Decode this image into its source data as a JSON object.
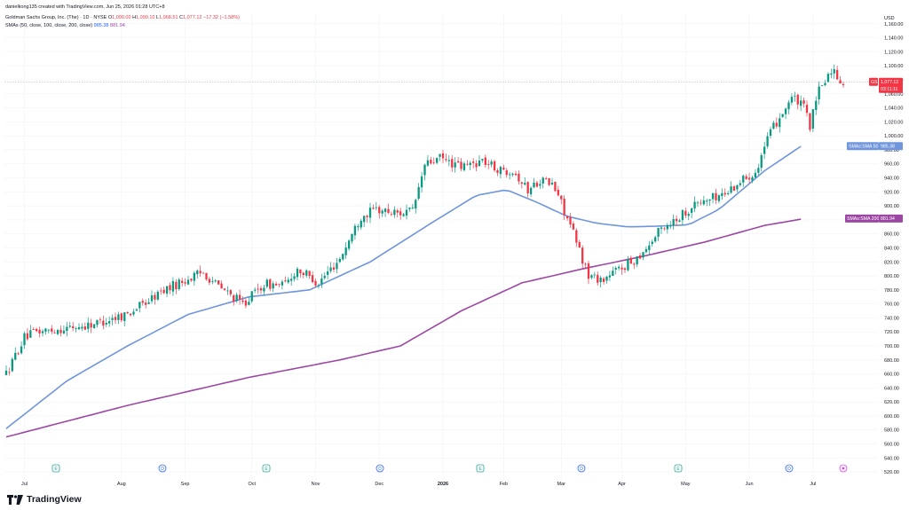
{
  "header": {
    "credit": "danielkong135 created with TradingView.com, Jun 25, 2026 01:28 UTC+8",
    "symbol": "Goldman Sachs Group, Inc. (The) · 1D · NYSE",
    "ohlc": [
      {
        "k": "O",
        "v": "1,090.00"
      },
      {
        "k": "H",
        "v": "1,090.10"
      },
      {
        "k": "L",
        "v": "1,068.51"
      },
      {
        "k": "C",
        "v": "1,077.12"
      }
    ],
    "change": "−17.32 (−1.58%)",
    "sma_label": "SMAs (50, close, 100, close, 200, close)",
    "sma_values": [
      "985.38",
      "881.94"
    ]
  },
  "brand": {
    "logo_icon": "tradingview-logo-icon",
    "name": "TradingView"
  },
  "colors": {
    "up": "#089981",
    "down": "#f23645",
    "sma50": "#6f95dc",
    "sma200": "#9c47a3",
    "grid": "#f0f3fa",
    "event": "#26a69a",
    "dividend": "#2962ff"
  },
  "chart_data": {
    "type": "candlestick",
    "currency": "USD",
    "price_axis": {
      "range": [
        510,
        1175
      ],
      "ticks": [
        "520.00",
        "540.00",
        "560.00",
        "580.00",
        "600.00",
        "620.00",
        "640.00",
        "660.00",
        "680.00",
        "700.00",
        "720.00",
        "740.00",
        "760.00",
        "780.00",
        "800.00",
        "820.00",
        "840.00",
        "860.00",
        "880.00",
        "900.00",
        "920.00",
        "940.00",
        "960.00",
        "980.00",
        "1,000.00",
        "1,020.00",
        "1,040.00",
        "1,060.00",
        "1,080.00",
        "1,100.00",
        "1,120.00",
        "1,140.00",
        "1,160.00"
      ]
    },
    "time_axis": {
      "labels": [
        "Jul",
        "Aug",
        "Sep",
        "Oct",
        "Nov",
        "Dec",
        "2026",
        "Feb",
        "Mar",
        "Apr",
        "May",
        "Jun",
        "Jul"
      ]
    },
    "last_price": {
      "symbol": "GS",
      "value": "1,077.12",
      "countdown": "03:11:11"
    },
    "sma_labels": [
      {
        "name": "SMAs:SMA 50",
        "value": "985.38"
      },
      {
        "name": "SMAs:SMA 200",
        "value": "881.94"
      }
    ],
    "events": [
      "E",
      "D",
      "E",
      "D",
      "E",
      "D",
      "E",
      "D"
    ],
    "keypoints": [
      [
        0,
        660
      ],
      [
        6,
        712
      ],
      [
        10,
        720
      ],
      [
        25,
        728
      ],
      [
        30,
        733
      ],
      [
        40,
        746
      ],
      [
        47,
        765
      ],
      [
        52,
        780
      ],
      [
        58,
        792
      ],
      [
        65,
        805
      ],
      [
        70,
        785
      ],
      [
        78,
        760
      ],
      [
        85,
        788
      ],
      [
        92,
        787
      ],
      [
        96,
        810
      ],
      [
        103,
        790
      ],
      [
        110,
        825
      ],
      [
        117,
        885
      ],
      [
        122,
        895
      ],
      [
        128,
        890
      ],
      [
        134,
        892
      ],
      [
        138,
        958
      ],
      [
        143,
        968
      ],
      [
        150,
        955
      ],
      [
        157,
        965
      ],
      [
        163,
        950
      ],
      [
        167,
        952
      ],
      [
        172,
        922
      ],
      [
        176,
        938
      ],
      [
        180,
        930
      ],
      [
        182,
        915
      ],
      [
        187,
        860
      ],
      [
        192,
        800
      ],
      [
        197,
        795
      ],
      [
        202,
        810
      ],
      [
        207,
        822
      ],
      [
        212,
        845
      ],
      [
        216,
        868
      ],
      [
        221,
        882
      ],
      [
        227,
        902
      ],
      [
        232,
        910
      ],
      [
        237,
        918
      ],
      [
        242,
        935
      ],
      [
        247,
        950
      ],
      [
        251,
        995
      ],
      [
        254,
        1020
      ],
      [
        259,
        1055
      ],
      [
        263,
        1040
      ],
      [
        265,
        1015
      ],
      [
        268,
        1065
      ],
      [
        272,
        1095
      ],
      [
        276,
        1077
      ]
    ],
    "sma50_points": [
      [
        0,
        582
      ],
      [
        20,
        650
      ],
      [
        40,
        700
      ],
      [
        60,
        745
      ],
      [
        80,
        770
      ],
      [
        100,
        780
      ],
      [
        120,
        820
      ],
      [
        140,
        875
      ],
      [
        155,
        915
      ],
      [
        165,
        923
      ],
      [
        175,
        905
      ],
      [
        185,
        885
      ],
      [
        195,
        875
      ],
      [
        205,
        870
      ],
      [
        215,
        871
      ],
      [
        225,
        873
      ],
      [
        235,
        895
      ],
      [
        250,
        950
      ],
      [
        262,
        985
      ]
    ],
    "sma200_points": [
      [
        0,
        570
      ],
      [
        40,
        615
      ],
      [
        80,
        655
      ],
      [
        110,
        680
      ],
      [
        130,
        700
      ],
      [
        150,
        750
      ],
      [
        170,
        790
      ],
      [
        190,
        810
      ],
      [
        210,
        828
      ],
      [
        230,
        848
      ],
      [
        250,
        872
      ],
      [
        262,
        881
      ]
    ]
  }
}
